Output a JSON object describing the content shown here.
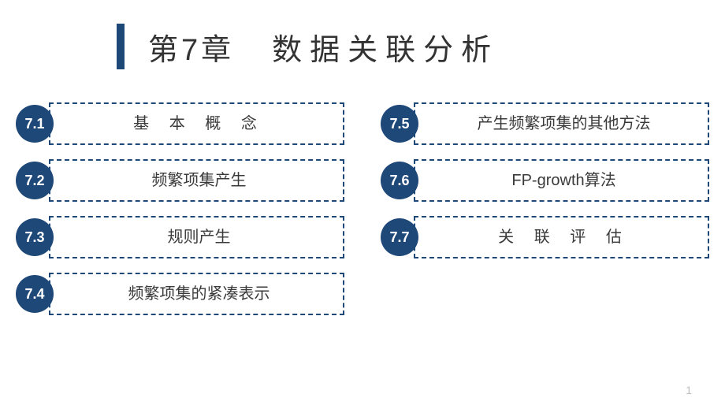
{
  "title": {
    "chapter_num": "第7章",
    "chapter_title": "数据关联分析",
    "bar_color": "#1e4878",
    "text_color": "#333333",
    "fontsize": 38
  },
  "colors": {
    "badge_bg": "#1e4878",
    "badge_text": "#ffffff",
    "box_border": "#1e4878",
    "box_text": "#3a3a3a",
    "page_bg": "#ffffff",
    "page_num_color": "#bdbdbd"
  },
  "left_items": [
    {
      "num": "7.1",
      "label": "基 本 概 念"
    },
    {
      "num": "7.2",
      "label": "频繁项集产生"
    },
    {
      "num": "7.3",
      "label": "规则产生"
    },
    {
      "num": "7.4",
      "label": "频繁项集的紧凑表示"
    }
  ],
  "right_items": [
    {
      "num": "7.5",
      "label": "产生频繁项集的其他方法"
    },
    {
      "num": "7.6",
      "label": "FP-growth算法"
    },
    {
      "num": "7.7",
      "label": "关 联 评 估"
    }
  ],
  "page_number": "1"
}
